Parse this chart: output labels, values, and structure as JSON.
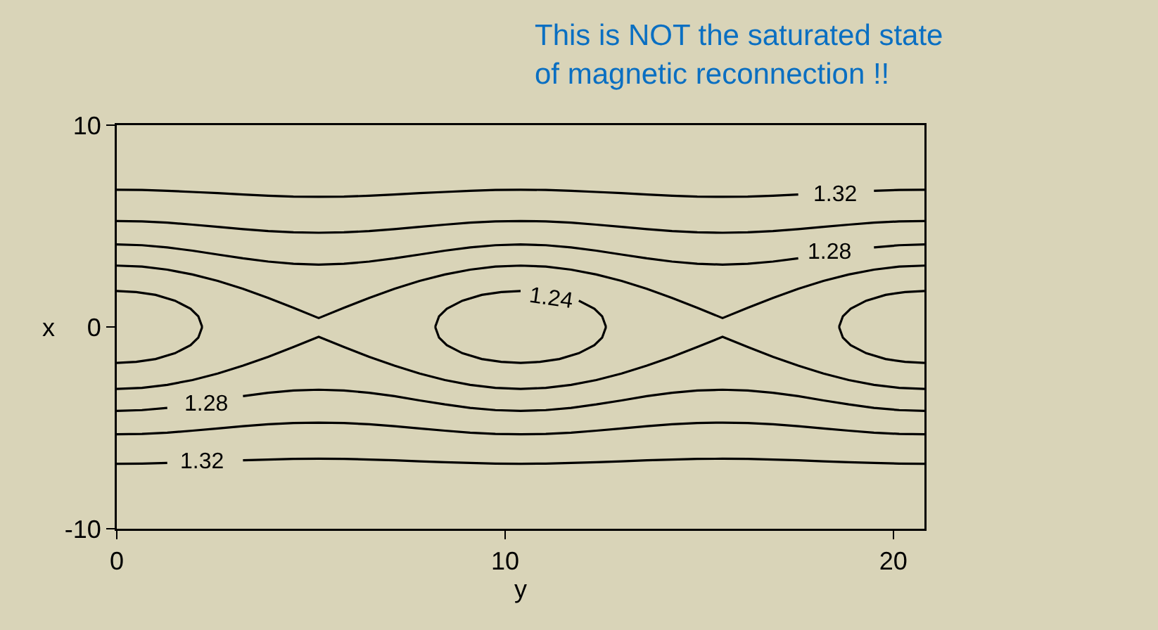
{
  "chart_data": {
    "type": "line",
    "xlabel": "y",
    "ylabel": "x",
    "xlim": [
      0,
      20.8
    ],
    "ylim": [
      -10,
      10
    ],
    "xticks": [
      0,
      10,
      20
    ],
    "yticks": [
      -10,
      0,
      10
    ],
    "grid": false,
    "marker": "none",
    "line_style": "solid",
    "x": [
      0,
      0.65,
      1.3,
      1.95,
      2.6,
      3.25,
      3.9,
      4.55,
      5.2,
      5.85,
      6.5,
      7.15,
      7.8,
      8.45,
      9.1,
      9.75,
      10.4,
      11.05,
      11.7,
      12.35,
      13,
      13.65,
      14.3,
      14.95,
      15.6,
      16.25,
      16.9,
      17.55,
      18.2,
      18.85,
      19.5,
      20.15,
      20.8
    ],
    "series": [
      {
        "color": "#000000",
        "values": [
          6.8,
          6.79,
          6.75,
          6.69,
          6.63,
          6.56,
          6.5,
          6.46,
          6.45,
          6.46,
          6.5,
          6.56,
          6.63,
          6.69,
          6.75,
          6.79,
          6.8,
          6.79,
          6.75,
          6.69,
          6.63,
          6.56,
          6.5,
          6.46,
          6.45,
          6.46,
          6.5,
          6.56,
          null,
          null,
          6.75,
          6.79,
          6.8
        ]
      },
      {
        "color": "#000000",
        "values": [
          5.25,
          5.23,
          5.17,
          5.07,
          4.96,
          4.85,
          4.75,
          4.69,
          4.67,
          4.69,
          4.75,
          4.85,
          4.96,
          5.07,
          5.17,
          5.23,
          5.25,
          5.23,
          5.17,
          5.07,
          4.96,
          4.85,
          4.75,
          4.69,
          4.67,
          4.69,
          4.75,
          4.85,
          4.96,
          5.07,
          5.17,
          5.23,
          5.25
        ]
      },
      {
        "color": "#000000",
        "values": [
          4.09,
          4.05,
          3.94,
          3.78,
          3.59,
          3.4,
          3.24,
          3.13,
          3.09,
          3.13,
          3.24,
          3.4,
          3.59,
          3.78,
          3.94,
          4.05,
          4.09,
          4.05,
          3.94,
          3.78,
          3.59,
          3.4,
          3.24,
          3.13,
          3.09,
          3.13,
          3.24,
          3.4,
          null,
          null,
          3.94,
          4.05,
          4.09
        ]
      },
      {
        "color": "#000000",
        "values": [
          3.04,
          2.99,
          2.84,
          2.6,
          2.28,
          1.89,
          1.44,
          0.95,
          0.44,
          0.95,
          1.44,
          1.89,
          2.28,
          2.6,
          2.84,
          2.99,
          3.04,
          2.99,
          2.84,
          2.6,
          2.28,
          1.89,
          1.44,
          0.95,
          0.44,
          0.95,
          1.44,
          1.89,
          2.28,
          2.6,
          2.84,
          2.99,
          3.04
        ]
      },
      {
        "color": "#000000",
        "values": [
          -3.07,
          -3.02,
          -2.87,
          -2.63,
          -2.31,
          -1.92,
          -1.48,
          -0.99,
          -0.49,
          -0.99,
          -1.48,
          -1.92,
          -2.31,
          -2.63,
          -2.87,
          -3.02,
          -3.07,
          -3.02,
          -2.87,
          -2.63,
          -2.31,
          -1.92,
          -1.48,
          -0.99,
          -0.49,
          -0.99,
          -1.48,
          -1.92,
          -2.31,
          -2.63,
          -2.87,
          -3.02,
          -3.07
        ]
      },
      {
        "color": "#000000",
        "values": [
          -4.16,
          -4.12,
          -4.01,
          null,
          null,
          -3.43,
          -3.26,
          -3.15,
          -3.11,
          -3.15,
          -3.26,
          -3.43,
          -3.64,
          -3.84,
          -4.01,
          -4.12,
          -4.16,
          -4.12,
          -4.01,
          -3.84,
          -3.64,
          -3.43,
          -3.26,
          -3.15,
          -3.11,
          -3.15,
          -3.26,
          -3.43,
          -3.64,
          -3.84,
          -4.01,
          -4.12,
          -4.16
        ]
      },
      {
        "color": "#000000",
        "values": [
          -5.32,
          -5.3,
          -5.24,
          -5.14,
          -5.03,
          -4.92,
          -4.82,
          -4.76,
          -4.74,
          -4.76,
          -4.82,
          -4.92,
          -5.03,
          -5.14,
          -5.24,
          -5.3,
          -5.32,
          -5.3,
          -5.24,
          -5.14,
          -5.03,
          -4.92,
          -4.82,
          -4.76,
          -4.74,
          -4.76,
          -4.82,
          -4.92,
          -5.03,
          -5.14,
          -5.24,
          -5.3,
          -5.32
        ]
      },
      {
        "color": "#000000",
        "values": [
          -6.78,
          -6.77,
          -6.74,
          null,
          null,
          -6.61,
          -6.57,
          -6.54,
          -6.53,
          -6.54,
          -6.57,
          -6.61,
          -6.66,
          -6.7,
          -6.74,
          -6.77,
          -6.78,
          -6.77,
          -6.74,
          -6.7,
          -6.66,
          -6.61,
          -6.57,
          -6.54,
          -6.53,
          -6.54,
          -6.57,
          -6.61,
          -6.66,
          -6.7,
          -6.74,
          -6.77,
          -6.78
        ]
      },
      {
        "color": "#000000",
        "x": [
          0,
          0.5,
          1,
          1.5,
          1.9,
          2.1,
          2.2
        ],
        "values": [
          1.78,
          1.73,
          1.59,
          1.3,
          0.9,
          0.53,
          0
        ]
      },
      {
        "color": "#000000",
        "x": [
          0,
          0.5,
          1,
          1.5,
          1.9,
          2.1,
          2.2
        ],
        "values": [
          -1.78,
          -1.73,
          -1.59,
          -1.3,
          -0.9,
          -0.53,
          0
        ]
      },
      {
        "color": "#000000",
        "x": [
          8.2,
          8.3,
          8.5,
          8.9,
          9.4,
          9.9,
          10.4,
          10.9,
          11.4,
          11.9,
          12.3,
          12.5,
          12.6
        ],
        "values": [
          0,
          0.53,
          0.9,
          1.3,
          1.59,
          1.73,
          1.78,
          null,
          null,
          1.3,
          0.9,
          0.53,
          0
        ]
      },
      {
        "color": "#000000",
        "x": [
          8.2,
          8.3,
          8.5,
          8.9,
          9.4,
          9.9,
          10.4,
          10.9,
          11.4,
          11.9,
          12.3,
          12.5,
          12.6
        ],
        "values": [
          0,
          -0.53,
          -0.9,
          -1.3,
          -1.59,
          -1.73,
          -1.78,
          -1.73,
          -1.59,
          -1.3,
          -0.9,
          -0.53,
          0
        ]
      },
      {
        "color": "#000000",
        "x": [
          18.6,
          18.7,
          18.9,
          19.3,
          19.8,
          20.3,
          20.8
        ],
        "values": [
          0,
          0.53,
          0.9,
          1.3,
          1.59,
          1.73,
          1.78
        ]
      },
      {
        "color": "#000000",
        "x": [
          18.6,
          18.7,
          18.9,
          19.3,
          19.8,
          20.3,
          20.8
        ],
        "values": [
          0,
          -0.53,
          -0.9,
          -1.3,
          -1.59,
          -1.73,
          -1.78
        ]
      }
    ],
    "annotations": [
      "This is NOT the saturated state\nof magnetic reconnection !!",
      "1.32",
      "1.28",
      "1.24",
      "1.28",
      "1.32"
    ]
  }
}
